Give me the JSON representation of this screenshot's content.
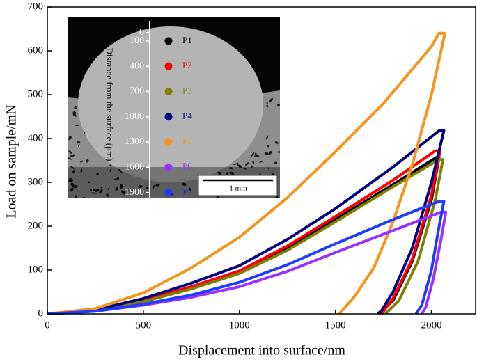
{
  "chart_data": [
    {
      "type": "line",
      "xlabel": "Displacement into surface/nm",
      "ylabel": "Load on sample/mN",
      "xlim": [
        0,
        2230
      ],
      "ylim": [
        0,
        700
      ],
      "xticks": [
        0,
        500,
        1000,
        1500,
        2000
      ],
      "yticks": [
        0,
        100,
        200,
        300,
        400,
        500,
        600,
        700
      ],
      "series": [
        {
          "name": "P1",
          "color": "#000000",
          "x": [
            0,
            250,
            500,
            750,
            1000,
            1250,
            1500,
            1800,
            2030,
            2040,
            2000,
            1900,
            1800,
            1720
          ],
          "values": [
            0,
            8,
            30,
            60,
            95,
            150,
            215,
            295,
            358,
            358,
            260,
            120,
            30,
            0
          ]
        },
        {
          "name": "P2",
          "color": "#ff0000",
          "x": [
            0,
            250,
            500,
            750,
            1000,
            1250,
            1500,
            1800,
            2020,
            2045,
            2000,
            1900,
            1800,
            1740
          ],
          "values": [
            0,
            8,
            31,
            62,
            98,
            155,
            222,
            305,
            372,
            372,
            270,
            125,
            35,
            0
          ]
        },
        {
          "name": "P3",
          "color": "#808000",
          "x": [
            0,
            250,
            500,
            750,
            1000,
            1250,
            1500,
            1800,
            2040,
            2060,
            2020,
            1930,
            1830,
            1760
          ],
          "values": [
            0,
            7,
            28,
            57,
            92,
            145,
            210,
            290,
            352,
            352,
            260,
            120,
            30,
            0
          ]
        },
        {
          "name": "P4",
          "color": "#000080",
          "x": [
            0,
            250,
            500,
            750,
            1000,
            1250,
            1500,
            1800,
            2040,
            2065,
            2000,
            1900,
            1800,
            1730
          ],
          "values": [
            0,
            9,
            35,
            70,
            110,
            170,
            240,
            335,
            418,
            418,
            300,
            150,
            50,
            0
          ]
        },
        {
          "name": "P5",
          "color": "#f7941d",
          "x": [
            0,
            250,
            500,
            750,
            1000,
            1250,
            1500,
            1750,
            2000,
            2040,
            2070,
            2000,
            1900,
            1800,
            1700,
            1600,
            1540,
            1520
          ],
          "values": [
            0,
            12,
            48,
            105,
            175,
            265,
            370,
            480,
            610,
            640,
            640,
            500,
            340,
            210,
            105,
            40,
            10,
            0
          ]
        },
        {
          "name": "P6",
          "color": "#9b30ff",
          "x": [
            0,
            250,
            500,
            750,
            1000,
            1250,
            1500,
            1800,
            2050,
            2075,
            2050,
            2010,
            1970,
            1950
          ],
          "values": [
            0,
            6,
            20,
            38,
            62,
            97,
            140,
            190,
            232,
            232,
            170,
            80,
            15,
            0
          ]
        },
        {
          "name": "P7",
          "color": "#1e3cff",
          "x": [
            0,
            250,
            500,
            750,
            1000,
            1250,
            1500,
            1800,
            2040,
            2065,
            2040,
            2000,
            1950,
            1920
          ],
          "values": [
            0,
            6,
            22,
            43,
            72,
            112,
            160,
            215,
            257,
            257,
            200,
            100,
            20,
            0
          ]
        }
      ]
    },
    {
      "type": "scatter",
      "ylabel": "Distance from the surface (μm)",
      "ylim": [
        -180,
        1970
      ],
      "yticks": [
        0,
        100,
        400,
        700,
        1000,
        1300,
        1600,
        1900
      ],
      "scale_bar": "1 mm",
      "series": [
        {
          "name": "P1",
          "color": "#000000",
          "values": [
            100
          ]
        },
        {
          "name": "P2",
          "color": "#ff0000",
          "values": [
            400
          ]
        },
        {
          "name": "P3",
          "color": "#808000",
          "values": [
            700
          ]
        },
        {
          "name": "P4",
          "color": "#000080",
          "values": [
            1000
          ]
        },
        {
          "name": "P5",
          "color": "#f7941d",
          "values": [
            1300
          ]
        },
        {
          "name": "P6",
          "color": "#9b30ff",
          "values": [
            1600
          ]
        },
        {
          "name": "P7",
          "color": "#1e3cff",
          "values": [
            1900
          ]
        }
      ]
    }
  ]
}
